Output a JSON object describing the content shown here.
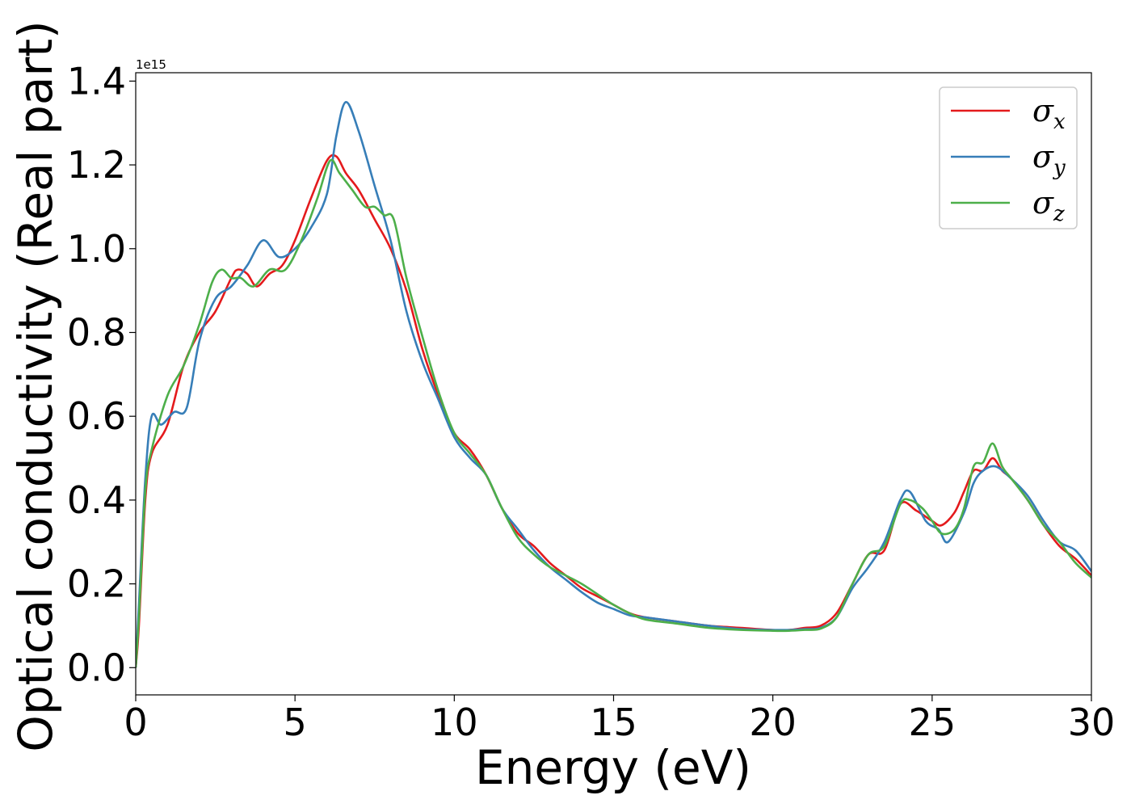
{
  "chart_data": {
    "type": "line",
    "title": "",
    "xlabel": "Energy (eV)",
    "ylabel": "Optical conductivity (Real part)",
    "y_offset_text": "1e15",
    "xlim": [
      0,
      30
    ],
    "ylim": [
      -0.065,
      1.42
    ],
    "y_scale_factor": 1000000000000000.0,
    "xticks": [
      0,
      5,
      10,
      15,
      20,
      25,
      30
    ],
    "yticks": [
      0.0,
      0.2,
      0.4,
      0.6,
      0.8,
      1.0,
      1.2,
      1.4
    ],
    "xtick_labels": [
      "0",
      "5",
      "10",
      "15",
      "20",
      "25",
      "30"
    ],
    "ytick_labels": [
      "0.0",
      "0.2",
      "0.4",
      "0.6",
      "0.8",
      "1.0",
      "1.2",
      "1.4"
    ],
    "grid": false,
    "legend_position": "top-right",
    "series": [
      {
        "name": "σx",
        "symbol": "σ",
        "subscript": "x",
        "color": "#e41a1c",
        "x": [
          0,
          0.1,
          0.3,
          0.5,
          1.0,
          1.5,
          2.0,
          2.5,
          3.0,
          3.2,
          3.5,
          3.8,
          4.2,
          4.6,
          5.0,
          5.5,
          6.0,
          6.3,
          6.6,
          7.0,
          7.5,
          8.0,
          8.5,
          9.0,
          9.5,
          10.0,
          10.5,
          11.0,
          11.5,
          12.0,
          12.5,
          13.0,
          13.5,
          14.0,
          14.5,
          15.0,
          15.5,
          16.0,
          17.0,
          18.0,
          19.0,
          20.0,
          20.5,
          21.0,
          21.5,
          22.0,
          22.5,
          23.0,
          23.5,
          24.0,
          24.5,
          25.0,
          25.3,
          25.7,
          26.0,
          26.3,
          26.6,
          26.9,
          27.2,
          27.5,
          28.0,
          28.5,
          29.0,
          29.5,
          30.0
        ],
        "y": [
          0.0,
          0.1,
          0.4,
          0.51,
          0.58,
          0.72,
          0.8,
          0.85,
          0.93,
          0.95,
          0.94,
          0.91,
          0.94,
          0.96,
          1.02,
          1.12,
          1.21,
          1.22,
          1.18,
          1.14,
          1.07,
          1.0,
          0.9,
          0.76,
          0.65,
          0.56,
          0.52,
          0.46,
          0.38,
          0.32,
          0.29,
          0.25,
          0.22,
          0.19,
          0.17,
          0.15,
          0.13,
          0.12,
          0.11,
          0.1,
          0.095,
          0.09,
          0.09,
          0.095,
          0.1,
          0.13,
          0.2,
          0.27,
          0.28,
          0.39,
          0.375,
          0.35,
          0.34,
          0.37,
          0.42,
          0.47,
          0.47,
          0.5,
          0.47,
          0.45,
          0.4,
          0.34,
          0.29,
          0.26,
          0.22
        ]
      },
      {
        "name": "σy",
        "symbol": "σ",
        "subscript": "y",
        "color": "#377eb8",
        "x": [
          0,
          0.1,
          0.3,
          0.5,
          0.8,
          1.2,
          1.6,
          2.0,
          2.5,
          3.0,
          3.5,
          4.0,
          4.5,
          5.0,
          5.5,
          6.0,
          6.3,
          6.6,
          7.0,
          7.5,
          8.0,
          8.5,
          9.0,
          9.5,
          10.0,
          10.5,
          11.0,
          11.5,
          12.0,
          12.5,
          13.0,
          13.5,
          14.0,
          14.5,
          15.0,
          15.5,
          16.0,
          17.0,
          18.0,
          19.0,
          20.0,
          20.5,
          21.0,
          21.5,
          22.0,
          22.5,
          23.0,
          23.5,
          24.0,
          24.3,
          24.8,
          25.2,
          25.5,
          26.0,
          26.3,
          26.6,
          27.0,
          27.5,
          28.0,
          28.5,
          29.0,
          29.5,
          30.0
        ],
        "y": [
          0.0,
          0.15,
          0.45,
          0.6,
          0.58,
          0.61,
          0.62,
          0.78,
          0.88,
          0.91,
          0.96,
          1.02,
          0.98,
          1.0,
          1.05,
          1.13,
          1.27,
          1.35,
          1.28,
          1.15,
          1.02,
          0.85,
          0.73,
          0.64,
          0.55,
          0.5,
          0.46,
          0.38,
          0.33,
          0.28,
          0.24,
          0.21,
          0.18,
          0.155,
          0.14,
          0.125,
          0.12,
          0.11,
          0.1,
          0.092,
          0.09,
          0.09,
          0.092,
          0.095,
          0.12,
          0.19,
          0.24,
          0.3,
          0.4,
          0.42,
          0.35,
          0.33,
          0.3,
          0.37,
          0.44,
          0.47,
          0.48,
          0.45,
          0.41,
          0.35,
          0.3,
          0.28,
          0.23
        ]
      },
      {
        "name": "σz",
        "symbol": "σ",
        "subscript": "z",
        "color": "#4daf4a",
        "x": [
          0,
          0.1,
          0.3,
          0.5,
          1.0,
          1.5,
          2.0,
          2.4,
          2.7,
          3.0,
          3.3,
          3.7,
          4.2,
          4.7,
          5.2,
          5.7,
          6.1,
          6.4,
          6.8,
          7.2,
          7.5,
          7.8,
          8.1,
          8.5,
          9.0,
          9.5,
          10.0,
          10.5,
          11.0,
          11.5,
          12.0,
          12.5,
          13.0,
          13.5,
          14.0,
          14.5,
          15.0,
          15.5,
          16.0,
          17.0,
          18.0,
          19.0,
          20.0,
          20.5,
          21.0,
          21.5,
          22.0,
          22.5,
          23.0,
          23.5,
          24.0,
          24.3,
          24.7,
          25.0,
          25.3,
          25.7,
          26.0,
          26.3,
          26.6,
          26.9,
          27.2,
          27.5,
          28.0,
          28.5,
          29.0,
          29.5,
          30.0
        ],
        "y": [
          0.0,
          0.12,
          0.42,
          0.52,
          0.65,
          0.72,
          0.82,
          0.92,
          0.95,
          0.93,
          0.93,
          0.91,
          0.95,
          0.95,
          1.02,
          1.12,
          1.21,
          1.18,
          1.14,
          1.1,
          1.1,
          1.08,
          1.07,
          0.93,
          0.79,
          0.66,
          0.56,
          0.51,
          0.46,
          0.38,
          0.31,
          0.27,
          0.24,
          0.22,
          0.2,
          0.175,
          0.15,
          0.13,
          0.115,
          0.105,
          0.095,
          0.09,
          0.088,
          0.088,
          0.09,
          0.093,
          0.12,
          0.2,
          0.27,
          0.29,
          0.39,
          0.4,
          0.38,
          0.35,
          0.32,
          0.33,
          0.38,
          0.48,
          0.49,
          0.535,
          0.48,
          0.45,
          0.4,
          0.34,
          0.3,
          0.25,
          0.215
        ]
      }
    ]
  }
}
